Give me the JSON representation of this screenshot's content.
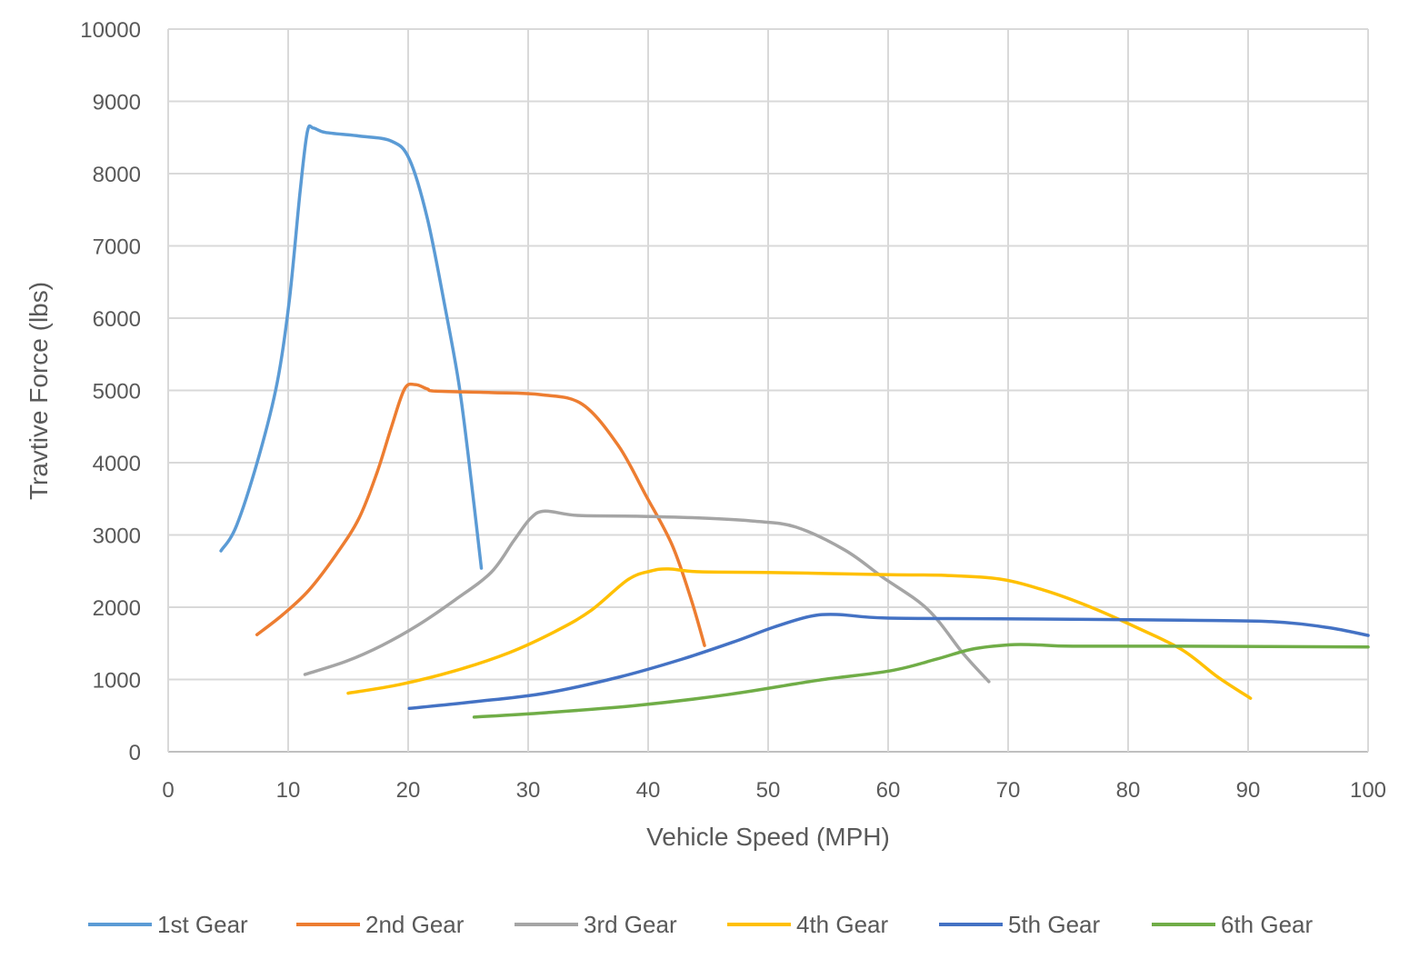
{
  "chart_data": {
    "type": "line",
    "title": "",
    "xlabel": "Vehicle Speed (MPH)",
    "ylabel": "Travtive Force (lbs)",
    "xlim": [
      0,
      100
    ],
    "ylim": [
      0,
      10000
    ],
    "xticks": [
      0,
      10,
      20,
      30,
      40,
      50,
      60,
      70,
      80,
      90,
      100
    ],
    "yticks": [
      0,
      1000,
      2000,
      3000,
      4000,
      5000,
      6000,
      7000,
      8000,
      9000,
      10000
    ],
    "grid": true,
    "legend_position": "bottom",
    "series": [
      {
        "name": "1st Gear",
        "color": "#5B9BD5",
        "points": [
          [
            4.4,
            2780
          ],
          [
            5.7,
            3130
          ],
          [
            7.6,
            4110
          ],
          [
            9.1,
            5120
          ],
          [
            10.1,
            6250
          ],
          [
            11.0,
            7760
          ],
          [
            11.6,
            8580
          ],
          [
            12.1,
            8630
          ],
          [
            13.1,
            8570
          ],
          [
            15.9,
            8520
          ],
          [
            18.6,
            8450
          ],
          [
            20.1,
            8200
          ],
          [
            21.6,
            7380
          ],
          [
            23.1,
            6130
          ],
          [
            24.2,
            5120
          ],
          [
            25.0,
            4110
          ],
          [
            26.1,
            2540
          ]
        ]
      },
      {
        "name": "2nd Gear",
        "color": "#ED7D31",
        "points": [
          [
            7.4,
            1620
          ],
          [
            9.5,
            1890
          ],
          [
            11.7,
            2230
          ],
          [
            14.0,
            2730
          ],
          [
            15.9,
            3230
          ],
          [
            17.4,
            3860
          ],
          [
            18.6,
            4490
          ],
          [
            19.7,
            5020
          ],
          [
            20.6,
            5080
          ],
          [
            21.6,
            5020
          ],
          [
            22.3,
            4990
          ],
          [
            26.9,
            4970
          ],
          [
            31.1,
            4940
          ],
          [
            34.5,
            4810
          ],
          [
            37.5,
            4240
          ],
          [
            39.8,
            3550
          ],
          [
            42.0,
            2860
          ],
          [
            43.6,
            2100
          ],
          [
            44.7,
            1470
          ]
        ]
      },
      {
        "name": "3rd Gear",
        "color": "#A5A5A5",
        "points": [
          [
            11.4,
            1070
          ],
          [
            14.8,
            1250
          ],
          [
            17.8,
            1470
          ],
          [
            20.8,
            1750
          ],
          [
            23.9,
            2100
          ],
          [
            26.9,
            2480
          ],
          [
            28.8,
            2920
          ],
          [
            30.2,
            3230
          ],
          [
            31.4,
            3330
          ],
          [
            34.1,
            3270
          ],
          [
            39.0,
            3260
          ],
          [
            45.1,
            3230
          ],
          [
            48.9,
            3190
          ],
          [
            52.3,
            3110
          ],
          [
            56.4,
            2790
          ],
          [
            59.5,
            2420
          ],
          [
            63.3,
            1970
          ],
          [
            66.3,
            1350
          ],
          [
            68.4,
            970
          ]
        ]
      },
      {
        "name": "4th Gear",
        "color": "#FFC000",
        "points": [
          [
            15.0,
            810
          ],
          [
            19.3,
            930
          ],
          [
            23.9,
            1120
          ],
          [
            28.4,
            1370
          ],
          [
            32.2,
            1660
          ],
          [
            35.2,
            1950
          ],
          [
            38.3,
            2380
          ],
          [
            40.2,
            2500
          ],
          [
            41.7,
            2530
          ],
          [
            44.3,
            2490
          ],
          [
            50.4,
            2480
          ],
          [
            60.2,
            2450
          ],
          [
            64.8,
            2440
          ],
          [
            69.3,
            2390
          ],
          [
            73.1,
            2230
          ],
          [
            76.9,
            2000
          ],
          [
            80.7,
            1720
          ],
          [
            84.5,
            1410
          ],
          [
            87.5,
            1030
          ],
          [
            90.2,
            740
          ]
        ]
      },
      {
        "name": "5th Gear",
        "color": "#4472C4",
        "points": [
          [
            20.1,
            600
          ],
          [
            25.4,
            690
          ],
          [
            31.4,
            810
          ],
          [
            37.5,
            1030
          ],
          [
            42.8,
            1280
          ],
          [
            47.3,
            1530
          ],
          [
            50.4,
            1720
          ],
          [
            53.4,
            1870
          ],
          [
            55.7,
            1900
          ],
          [
            59.8,
            1850
          ],
          [
            69.3,
            1840
          ],
          [
            84.5,
            1820
          ],
          [
            92.0,
            1800
          ],
          [
            96.6,
            1720
          ],
          [
            100,
            1610
          ]
        ]
      },
      {
        "name": "6th Gear",
        "color": "#70AD47",
        "points": [
          [
            25.5,
            480
          ],
          [
            31.4,
            540
          ],
          [
            39.0,
            640
          ],
          [
            46.6,
            790
          ],
          [
            54.2,
            990
          ],
          [
            60.2,
            1120
          ],
          [
            64.0,
            1280
          ],
          [
            67.0,
            1420
          ],
          [
            70.1,
            1480
          ],
          [
            72.3,
            1480
          ],
          [
            75.4,
            1460
          ],
          [
            84.5,
            1460
          ],
          [
            100,
            1450
          ]
        ]
      }
    ]
  }
}
